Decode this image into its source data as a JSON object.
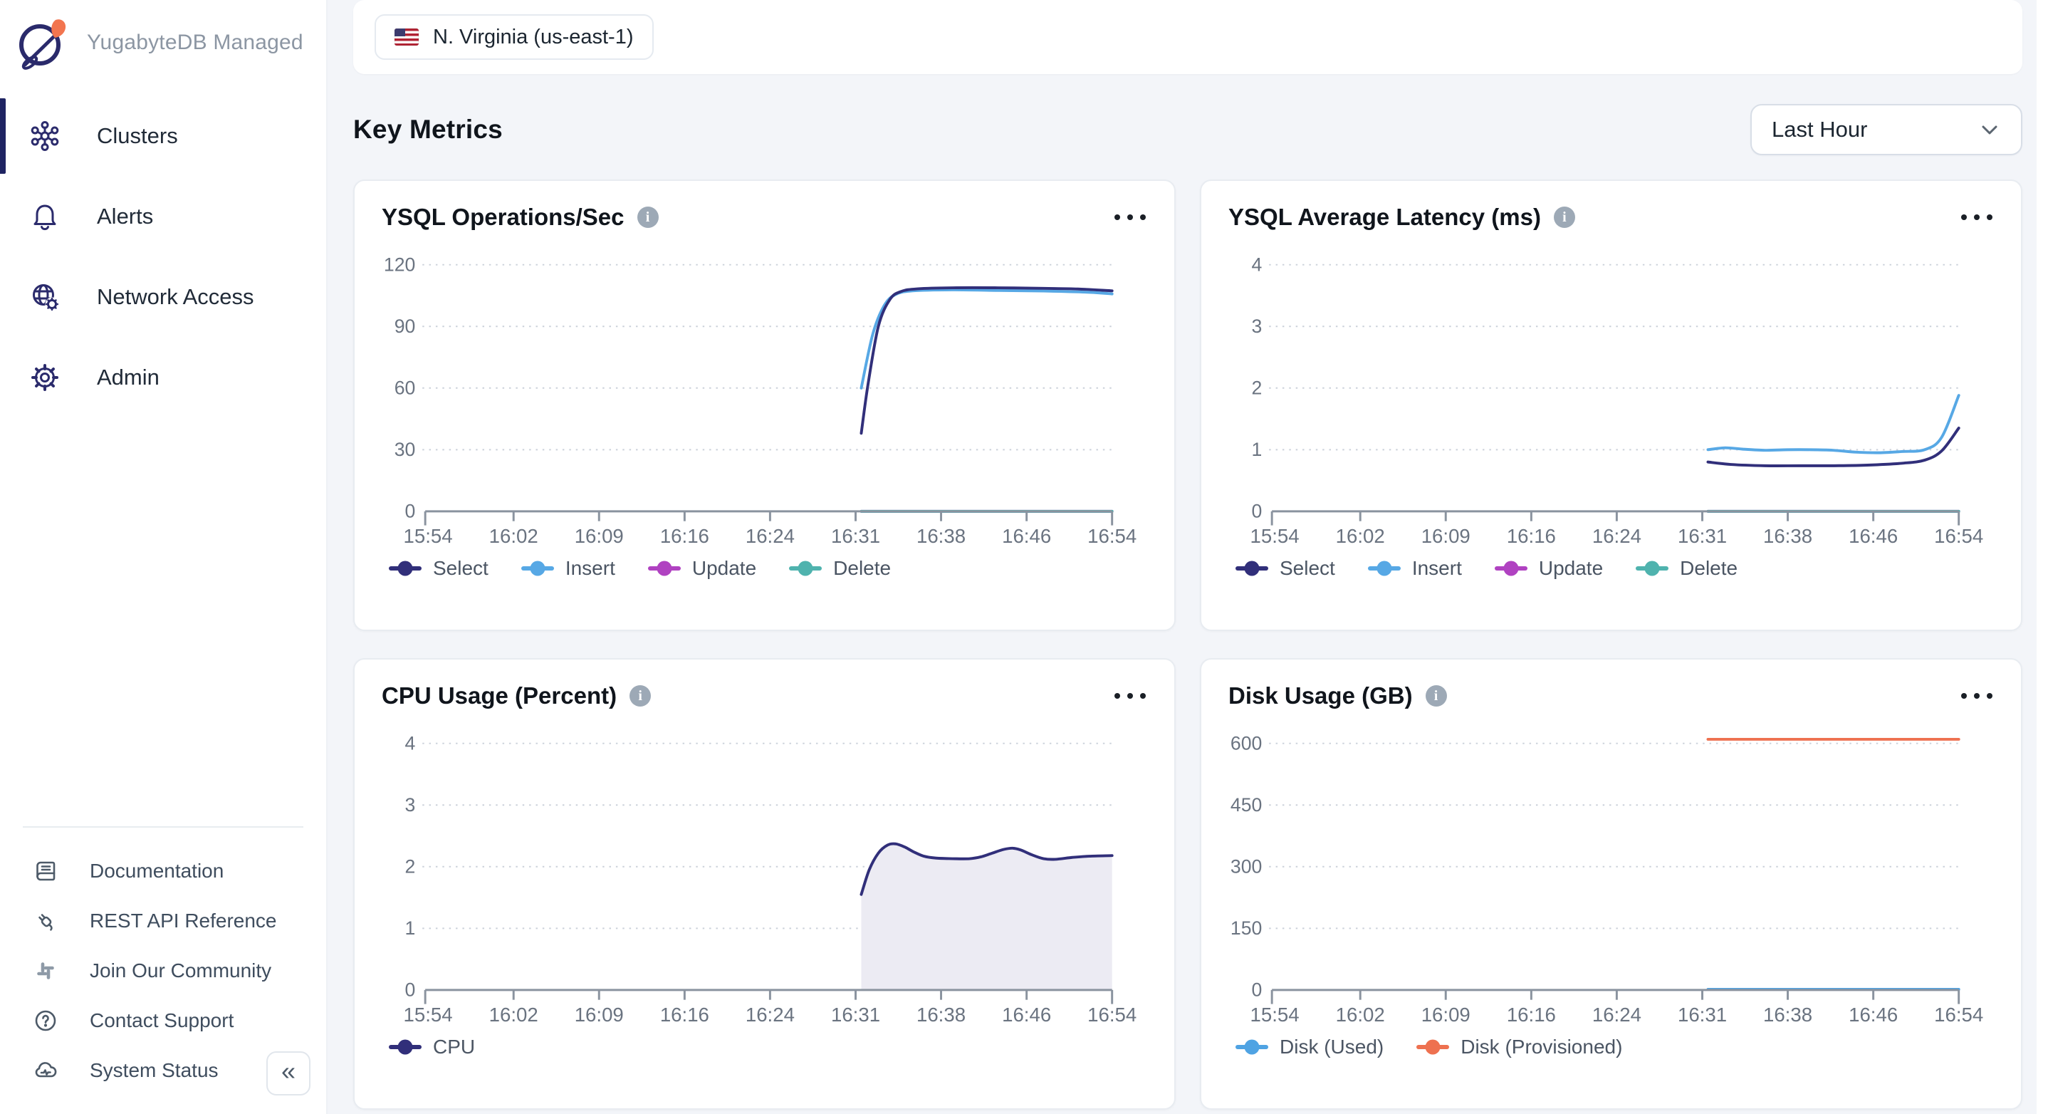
{
  "app": {
    "logo_title": "YugabyteDB Managed"
  },
  "sidebar": {
    "nav_items": [
      {
        "label": "Clusters",
        "icon": "clusters-icon",
        "active": true
      },
      {
        "label": "Alerts",
        "icon": "alerts-icon",
        "active": false
      },
      {
        "label": "Network Access",
        "icon": "network-access-icon",
        "active": false
      },
      {
        "label": "Admin",
        "icon": "admin-icon",
        "active": false
      }
    ],
    "footer_items": [
      {
        "label": "Documentation",
        "icon": "documentation-icon"
      },
      {
        "label": "REST API Reference",
        "icon": "rest-api-icon"
      },
      {
        "label": "Join Our Community",
        "icon": "community-icon"
      },
      {
        "label": "Contact Support",
        "icon": "contact-support-icon"
      },
      {
        "label": "System Status",
        "icon": "system-status-icon"
      }
    ],
    "collapse_glyph": "«"
  },
  "topbar": {
    "region_label": "N. Virginia (us-east-1)"
  },
  "content": {
    "heading": "Key Metrics",
    "time_range_value": "Last Hour"
  },
  "colors": {
    "select": "#312F7A",
    "insert": "#57A8E5",
    "update": "#B042C1",
    "delete": "#4FB3AE",
    "cpu": "#312F7A",
    "cpu_fill": "#ECEBF3",
    "disk_used": "#4FA3E3",
    "disk_provisioned": "#EE7150",
    "axis": "#8A939F",
    "grid": "#CBD1DA",
    "tick_text": "#6A7380"
  },
  "chart_data": [
    {
      "type": "line",
      "title": "YSQL Operations/Sec",
      "x_ticks": [
        "15:54",
        "16:02",
        "16:09",
        "16:16",
        "16:24",
        "16:31",
        "16:38",
        "16:46",
        "16:54"
      ],
      "x_range_minutes": [
        0,
        60
      ],
      "ylim": [
        0,
        120
      ],
      "y_ticks": [
        0,
        30,
        60,
        90,
        120
      ],
      "grid": "dotted",
      "legend_position": "bottom",
      "series": [
        {
          "name": "Update",
          "color_key": "update",
          "points": [
            [
              38,
              0
            ],
            [
              60,
              0
            ]
          ]
        },
        {
          "name": "Delete",
          "color_key": "delete",
          "points": [
            [
              38,
              0
            ],
            [
              60,
              0
            ]
          ]
        },
        {
          "name": "Insert",
          "color_key": "insert",
          "points": [
            [
              38,
              60
            ],
            [
              39,
              86
            ],
            [
              40,
              100
            ],
            [
              41,
              105.5
            ],
            [
              42.5,
              107.3
            ],
            [
              46,
              107.8
            ],
            [
              50,
              107.5
            ],
            [
              54,
              107.2
            ],
            [
              58,
              106.6
            ],
            [
              60,
              105.8
            ]
          ]
        },
        {
          "name": "Select",
          "color_key": "select",
          "points": [
            [
              38,
              38
            ],
            [
              38.6,
              62
            ],
            [
              39.5,
              90
            ],
            [
              40.5,
              103
            ],
            [
              41.5,
              107
            ],
            [
              43,
              108.3
            ],
            [
              46,
              108.8
            ],
            [
              50,
              108.8
            ],
            [
              54,
              108.5
            ],
            [
              57,
              108.2
            ],
            [
              60,
              107.3
            ]
          ]
        }
      ],
      "legend_order": [
        "Select",
        "Insert",
        "Update",
        "Delete"
      ]
    },
    {
      "type": "line",
      "title": "YSQL Average Latency (ms)",
      "x_ticks": [
        "15:54",
        "16:02",
        "16:09",
        "16:16",
        "16:24",
        "16:31",
        "16:38",
        "16:46",
        "16:54"
      ],
      "x_range_minutes": [
        0,
        60
      ],
      "ylim": [
        0,
        4
      ],
      "y_ticks": [
        0,
        1,
        2,
        3,
        4
      ],
      "grid": "dotted",
      "legend_position": "bottom",
      "series": [
        {
          "name": "Update",
          "color_key": "update",
          "points": [
            [
              38,
              0
            ],
            [
              60,
              0
            ]
          ]
        },
        {
          "name": "Delete",
          "color_key": "delete",
          "points": [
            [
              38,
              0
            ],
            [
              60,
              0
            ]
          ]
        },
        {
          "name": "Insert",
          "color_key": "insert",
          "points": [
            [
              38,
              1.0
            ],
            [
              39.5,
              1.03
            ],
            [
              41,
              1.01
            ],
            [
              43,
              0.99
            ],
            [
              45,
              1.0
            ],
            [
              47,
              1.0
            ],
            [
              49,
              0.99
            ],
            [
              51,
              0.96
            ],
            [
              53,
              0.95
            ],
            [
              55,
              0.97
            ],
            [
              57,
              1.0
            ],
            [
              58.5,
              1.2
            ],
            [
              60,
              1.88
            ]
          ]
        },
        {
          "name": "Select",
          "color_key": "select",
          "points": [
            [
              38,
              0.8
            ],
            [
              40,
              0.76
            ],
            [
              43,
              0.74
            ],
            [
              46,
              0.74
            ],
            [
              49,
              0.74
            ],
            [
              52,
              0.75
            ],
            [
              55,
              0.78
            ],
            [
              57,
              0.83
            ],
            [
              58.5,
              0.98
            ],
            [
              60,
              1.35
            ]
          ]
        }
      ],
      "legend_order": [
        "Select",
        "Insert",
        "Update",
        "Delete"
      ]
    },
    {
      "type": "area",
      "title": "CPU Usage (Percent)",
      "x_ticks": [
        "15:54",
        "16:02",
        "16:09",
        "16:16",
        "16:24",
        "16:31",
        "16:38",
        "16:46",
        "16:54"
      ],
      "x_range_minutes": [
        0,
        60
      ],
      "ylim": [
        0,
        4
      ],
      "y_ticks": [
        0,
        1,
        2,
        3,
        4
      ],
      "grid": "dotted",
      "legend_position": "bottom",
      "series": [
        {
          "name": "CPU",
          "color_key": "cpu",
          "fill_key": "cpu_fill",
          "points": [
            [
              38,
              1.55
            ],
            [
              38.7,
              1.95
            ],
            [
              39.5,
              2.22
            ],
            [
              40.3,
              2.35
            ],
            [
              41,
              2.37
            ],
            [
              41.8,
              2.32
            ],
            [
              42.6,
              2.24
            ],
            [
              43.5,
              2.17
            ],
            [
              44.5,
              2.14
            ],
            [
              46,
              2.13
            ],
            [
              47.5,
              2.13
            ],
            [
              48.5,
              2.16
            ],
            [
              49.5,
              2.22
            ],
            [
              50.5,
              2.28
            ],
            [
              51.3,
              2.3
            ],
            [
              52,
              2.27
            ],
            [
              53,
              2.19
            ],
            [
              54,
              2.13
            ],
            [
              55,
              2.12
            ],
            [
              56.5,
              2.15
            ],
            [
              58,
              2.17
            ],
            [
              60,
              2.18
            ]
          ]
        }
      ],
      "legend_order": [
        "CPU"
      ]
    },
    {
      "type": "line",
      "title": "Disk Usage (GB)",
      "x_ticks": [
        "15:54",
        "16:02",
        "16:09",
        "16:16",
        "16:24",
        "16:31",
        "16:38",
        "16:46",
        "16:54"
      ],
      "x_range_minutes": [
        0,
        60
      ],
      "ylim": [
        0,
        600
      ],
      "y_ticks": [
        0,
        150,
        300,
        450,
        600
      ],
      "grid": "dotted",
      "legend_position": "bottom",
      "series": [
        {
          "name": "Disk (Used)",
          "color_key": "disk_used",
          "points": [
            [
              38,
              1.5
            ],
            [
              60,
              1.5
            ]
          ]
        },
        {
          "name": "Disk (Provisioned)",
          "color_key": "disk_provisioned",
          "points": [
            [
              38,
              610
            ],
            [
              60,
              610
            ]
          ]
        }
      ],
      "legend_order": [
        "Disk (Used)",
        "Disk (Provisioned)"
      ]
    }
  ]
}
